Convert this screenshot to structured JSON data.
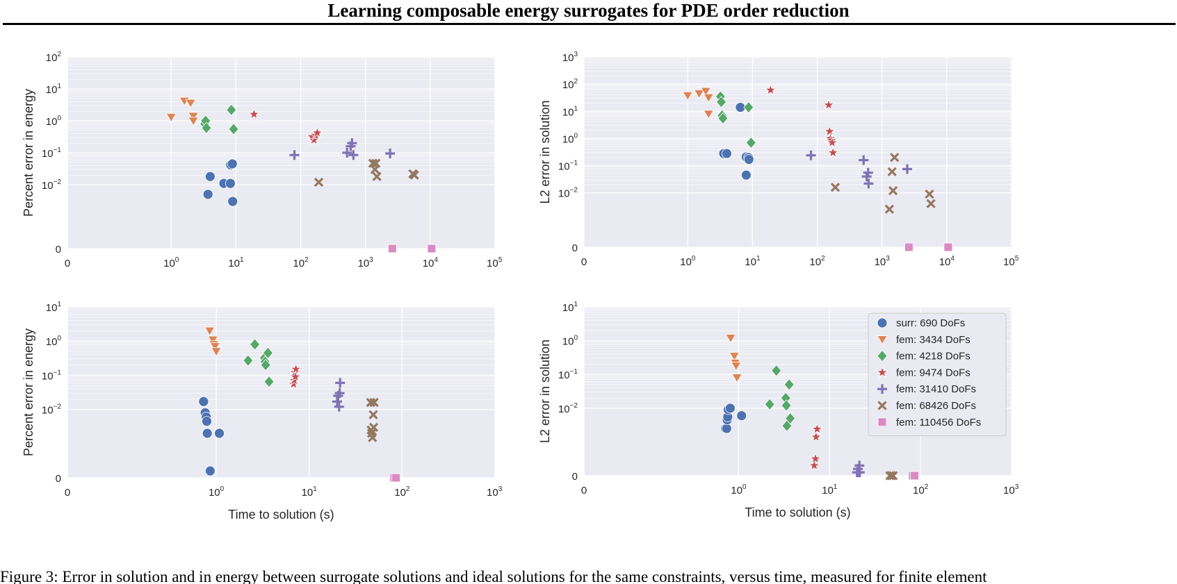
{
  "header": {
    "title": "Learning composable energy surrogates for PDE order reduction"
  },
  "caption": {
    "text": "Figure 3: Error in solution and in energy between surrogate solutions and ideal solutions for the same constraints, versus time, measured for finite element"
  },
  "colors": {
    "surr: 690 DoFs": "#4c72b0",
    "fem: 3434 DoFs": "#dd8452",
    "fem: 4218 DoFs": "#55a868",
    "fem: 9474 DoFs": "#c44e52",
    "fem: 31410 DoFs": "#8172b3",
    "fem: 68426 DoFs": "#937860",
    "fem: 110456 DoFs": "#da8bc3"
  },
  "chart_data": [
    {
      "type": "scatter",
      "xlabel": "",
      "ylabel": "Percent error in energy",
      "x_scale": "symlog",
      "y_scale": "symlog",
      "xlim": [
        0,
        100000
      ],
      "x_ticks": [
        {
          "v": 0,
          "base": "0",
          "exp": ""
        },
        {
          "v": 1,
          "base": "10",
          "exp": "0"
        },
        {
          "v": 10,
          "base": "10",
          "exp": "1"
        },
        {
          "v": 100,
          "base": "10",
          "exp": "2"
        },
        {
          "v": 1000,
          "base": "10",
          "exp": "3"
        },
        {
          "v": 10000,
          "base": "10",
          "exp": "4"
        },
        {
          "v": 100000,
          "base": "10",
          "exp": "5"
        }
      ],
      "y_ticks": [
        {
          "v": 0,
          "base": "0",
          "exp": ""
        },
        {
          "v": 0.01,
          "base": "10",
          "exp": "−2"
        },
        {
          "v": 0.1,
          "base": "10",
          "exp": "−1"
        },
        {
          "v": 1,
          "base": "10",
          "exp": "0"
        },
        {
          "v": 10,
          "base": "10",
          "exp": "1"
        },
        {
          "v": 100,
          "base": "10",
          "exp": "2"
        }
      ],
      "grid": true,
      "legend": null,
      "series": [
        {
          "name": "surr: 690 DoFs",
          "marker": "circle",
          "points": [
            [
              3.7,
              0.005
            ],
            [
              4.0,
              0.018
            ],
            [
              6.5,
              0.011
            ],
            [
              8.2,
              0.011
            ],
            [
              8.3,
              0.042
            ],
            [
              8.8,
              0.045
            ],
            [
              8.9,
              0.003
            ]
          ]
        },
        {
          "name": "fem: 3434 DoFs",
          "marker": "triangle-down",
          "points": [
            [
              1.0,
              1.3
            ],
            [
              1.6,
              4.2
            ],
            [
              2.0,
              3.6
            ],
            [
              2.2,
              1.4
            ],
            [
              2.2,
              1.0
            ]
          ]
        },
        {
          "name": "fem: 4218 DoFs",
          "marker": "diamond",
          "points": [
            [
              3.3,
              0.8
            ],
            [
              3.4,
              1.0
            ],
            [
              3.5,
              0.6
            ],
            [
              8.5,
              2.2
            ],
            [
              9.2,
              0.55
            ]
          ]
        },
        {
          "name": "fem: 9474 DoFs",
          "marker": "star",
          "points": [
            [
              19,
              1.6
            ],
            [
              150,
              0.32
            ],
            [
              160,
              0.25
            ],
            [
              170,
              0.35
            ],
            [
              180,
              0.42
            ]
          ]
        },
        {
          "name": "fem: 31410 DoFs",
          "marker": "plus",
          "points": [
            [
              80,
              0.085
            ],
            [
              520,
              0.1
            ],
            [
              590,
              0.16
            ],
            [
              620,
              0.2
            ],
            [
              650,
              0.085
            ],
            [
              2400,
              0.095
            ]
          ]
        },
        {
          "name": "fem: 68426 DoFs",
          "marker": "x",
          "points": [
            [
              190,
              0.012
            ],
            [
              1300,
              0.047
            ],
            [
              1450,
              0.047
            ],
            [
              1400,
              0.03
            ],
            [
              1500,
              0.018
            ],
            [
              5400,
              0.022
            ],
            [
              5700,
              0.02
            ]
          ]
        },
        {
          "name": "fem: 110456 DoFs",
          "marker": "square",
          "points": [
            [
              2600,
              0
            ],
            [
              10500,
              0
            ]
          ]
        }
      ]
    },
    {
      "type": "scatter",
      "xlabel": "",
      "ylabel": "L2 error in solution",
      "x_scale": "symlog",
      "y_scale": "symlog",
      "xlim": [
        0,
        100000
      ],
      "x_ticks": [
        {
          "v": 0,
          "base": "0",
          "exp": ""
        },
        {
          "v": 1,
          "base": "10",
          "exp": "0"
        },
        {
          "v": 10,
          "base": "10",
          "exp": "1"
        },
        {
          "v": 100,
          "base": "10",
          "exp": "2"
        },
        {
          "v": 1000,
          "base": "10",
          "exp": "3"
        },
        {
          "v": 10000,
          "base": "10",
          "exp": "4"
        },
        {
          "v": 100000,
          "base": "10",
          "exp": "5"
        }
      ],
      "y_ticks": [
        {
          "v": 0,
          "base": "0",
          "exp": ""
        },
        {
          "v": 0.01,
          "base": "10",
          "exp": "−2"
        },
        {
          "v": 0.1,
          "base": "10",
          "exp": "−1"
        },
        {
          "v": 1,
          "base": "10",
          "exp": "0"
        },
        {
          "v": 10,
          "base": "10",
          "exp": "1"
        },
        {
          "v": 100,
          "base": "10",
          "exp": "2"
        },
        {
          "v": 1000,
          "base": "10",
          "exp": "3"
        }
      ],
      "grid": true,
      "legend": null,
      "series": [
        {
          "name": "surr: 690 DoFs",
          "marker": "circle",
          "points": [
            [
              3.6,
              0.28
            ],
            [
              4.0,
              0.28
            ],
            [
              6.5,
              14
            ],
            [
              8.0,
              0.21
            ],
            [
              8.7,
              0.2
            ],
            [
              8.8,
              0.17
            ],
            [
              8.0,
              0.045
            ]
          ]
        },
        {
          "name": "fem: 3434 DoFs",
          "marker": "triangle-down",
          "points": [
            [
              1.0,
              38
            ],
            [
              1.5,
              45
            ],
            [
              1.9,
              55
            ],
            [
              2.1,
              32
            ],
            [
              2.1,
              8
            ]
          ]
        },
        {
          "name": "fem: 4218 DoFs",
          "marker": "diamond",
          "points": [
            [
              3.2,
              35
            ],
            [
              3.3,
              22
            ],
            [
              3.4,
              7
            ],
            [
              3.5,
              5.5
            ],
            [
              8.7,
              14
            ],
            [
              9.5,
              0.7
            ]
          ]
        },
        {
          "name": "fem: 9474 DoFs",
          "marker": "star",
          "points": [
            [
              19,
              60
            ],
            [
              150,
              17
            ],
            [
              155,
              1.8
            ],
            [
              160,
              1.0
            ],
            [
              165,
              0.85
            ],
            [
              170,
              0.7
            ],
            [
              175,
              0.3
            ]
          ]
        },
        {
          "name": "fem: 31410 DoFs",
          "marker": "plus",
          "points": [
            [
              80,
              0.24
            ],
            [
              520,
              0.16
            ],
            [
              580,
              0.04
            ],
            [
              610,
              0.055
            ],
            [
              620,
              0.022
            ],
            [
              2450,
              0.075
            ]
          ]
        },
        {
          "name": "fem: 68426 DoFs",
          "marker": "x",
          "points": [
            [
              190,
              0.016
            ],
            [
              1300,
              0.0025
            ],
            [
              1430,
              0.06
            ],
            [
              1480,
              0.012
            ],
            [
              1560,
              0.2
            ],
            [
              5400,
              0.009
            ],
            [
              5700,
              0.004
            ]
          ]
        },
        {
          "name": "fem: 110456 DoFs",
          "marker": "square",
          "points": [
            [
              2600,
              0
            ],
            [
              10500,
              0
            ]
          ]
        }
      ]
    },
    {
      "type": "scatter",
      "xlabel": "Time to solution (s)",
      "ylabel": "Percent error in energy",
      "x_scale": "symlog",
      "y_scale": "symlog",
      "xlim": [
        0,
        1000
      ],
      "x_ticks": [
        {
          "v": 0,
          "base": "0",
          "exp": ""
        },
        {
          "v": 1,
          "base": "10",
          "exp": "0"
        },
        {
          "v": 10,
          "base": "10",
          "exp": "1"
        },
        {
          "v": 100,
          "base": "10",
          "exp": "2"
        },
        {
          "v": 1000,
          "base": "10",
          "exp": "3"
        }
      ],
      "y_ticks": [
        {
          "v": 0,
          "base": "0",
          "exp": ""
        },
        {
          "v": 0.01,
          "base": "10",
          "exp": "−2"
        },
        {
          "v": 0.1,
          "base": "10",
          "exp": "−1"
        },
        {
          "v": 1,
          "base": "10",
          "exp": "0"
        },
        {
          "v": 10,
          "base": "10",
          "exp": "1"
        }
      ],
      "grid": true,
      "legend": null,
      "series": [
        {
          "name": "surr: 690 DoFs",
          "marker": "circle",
          "points": [
            [
              0.73,
              0.017
            ],
            [
              0.76,
              0.008
            ],
            [
              0.78,
              0.006
            ],
            [
              0.79,
              0.0045
            ],
            [
              0.8,
              0.002
            ],
            [
              0.86,
              0.0002
            ],
            [
              1.08,
              0.002
            ]
          ]
        },
        {
          "name": "fem: 3434 DoFs",
          "marker": "triangle-down",
          "points": [
            [
              0.85,
              2.0
            ],
            [
              0.92,
              1.1
            ],
            [
              0.94,
              0.8
            ],
            [
              0.97,
              0.7
            ],
            [
              1.0,
              0.5
            ]
          ]
        },
        {
          "name": "fem: 4218 DoFs",
          "marker": "diamond",
          "points": [
            [
              2.2,
              0.27
            ],
            [
              2.6,
              0.8
            ],
            [
              3.3,
              0.32
            ],
            [
              3.35,
              0.25
            ],
            [
              3.4,
              0.2
            ],
            [
              3.6,
              0.45
            ],
            [
              3.7,
              0.065
            ]
          ]
        },
        {
          "name": "fem: 9474 DoFs",
          "marker": "star",
          "points": [
            [
              6.8,
              0.055
            ],
            [
              6.9,
              0.07
            ],
            [
              7.0,
              0.12
            ],
            [
              7.2,
              0.15
            ],
            [
              7.1,
              0.09
            ]
          ]
        },
        {
          "name": "fem: 31410 DoFs",
          "marker": "plus",
          "points": [
            [
              20,
              0.017
            ],
            [
              20.5,
              0.025
            ],
            [
              21,
              0.012
            ],
            [
              21.3,
              0.03
            ],
            [
              21.5,
              0.06
            ]
          ]
        },
        {
          "name": "fem: 68426 DoFs",
          "marker": "x",
          "points": [
            [
              46,
              0.016
            ],
            [
              46.5,
              0.0025
            ],
            [
              47,
              0.002
            ],
            [
              48,
              0.0015
            ],
            [
              49,
              0.007
            ],
            [
              49.5,
              0.003
            ],
            [
              50,
              0.016
            ]
          ]
        },
        {
          "name": "fem: 110456 DoFs",
          "marker": "square",
          "points": [
            [
              82,
              0
            ],
            [
              86,
              0
            ]
          ]
        }
      ]
    },
    {
      "type": "scatter",
      "xlabel": "Time to solution (s)",
      "ylabel": "L2 error in solution",
      "x_scale": "symlog",
      "y_scale": "symlog",
      "xlim": [
        0,
        1000
      ],
      "x_ticks": [
        {
          "v": 0,
          "base": "0",
          "exp": ""
        },
        {
          "v": 1,
          "base": "10",
          "exp": "0"
        },
        {
          "v": 10,
          "base": "10",
          "exp": "1"
        },
        {
          "v": 100,
          "base": "10",
          "exp": "2"
        },
        {
          "v": 1000,
          "base": "10",
          "exp": "3"
        }
      ],
      "y_ticks": [
        {
          "v": 0,
          "base": "0",
          "exp": ""
        },
        {
          "v": 0.01,
          "base": "10",
          "exp": "−2"
        },
        {
          "v": 0.1,
          "base": "10",
          "exp": "−1"
        },
        {
          "v": 1,
          "base": "10",
          "exp": "0"
        },
        {
          "v": 10,
          "base": "10",
          "exp": "1"
        }
      ],
      "grid": true,
      "legend": "top-right",
      "series": [
        {
          "name": "surr: 690 DoFs",
          "marker": "circle",
          "points": [
            [
              0.72,
              0.0025
            ],
            [
              0.74,
              0.0025
            ],
            [
              0.75,
              0.0045
            ],
            [
              0.76,
              0.0055
            ],
            [
              0.77,
              0.009
            ],
            [
              0.81,
              0.01
            ],
            [
              1.08,
              0.006
            ]
          ]
        },
        {
          "name": "fem: 3434 DoFs",
          "marker": "triangle-down",
          "points": [
            [
              0.82,
              1.2
            ],
            [
              0.9,
              0.35
            ],
            [
              0.92,
              0.22
            ],
            [
              0.94,
              0.18
            ],
            [
              0.96,
              0.08
            ]
          ]
        },
        {
          "name": "fem: 4218 DoFs",
          "marker": "diamond",
          "points": [
            [
              2.2,
              0.013
            ],
            [
              2.6,
              0.13
            ],
            [
              3.3,
              0.02
            ],
            [
              3.35,
              0.012
            ],
            [
              3.4,
              0.003
            ],
            [
              3.6,
              0.05
            ],
            [
              3.7,
              0.005
            ]
          ]
        },
        {
          "name": "fem: 9474 DoFs",
          "marker": "star",
          "points": [
            [
              6.8,
              0.0003
            ],
            [
              7.0,
              0.0005
            ],
            [
              7.1,
              0.0014
            ],
            [
              7.3,
              0.0024
            ]
          ]
        },
        {
          "name": "fem: 31410 DoFs",
          "marker": "plus",
          "points": [
            [
              20,
              0.0001
            ],
            [
              20.5,
              0.0002
            ],
            [
              21,
              0.0001
            ],
            [
              21.3,
              0.0003
            ],
            [
              21.5,
              0.0001
            ]
          ]
        },
        {
          "name": "fem: 68426 DoFs",
          "marker": "x",
          "points": [
            [
              46,
              0
            ],
            [
              48,
              0
            ],
            [
              50,
              0
            ]
          ]
        },
        {
          "name": "fem: 110456 DoFs",
          "marker": "square",
          "points": [
            [
              82,
              0
            ],
            [
              86,
              0
            ]
          ]
        }
      ]
    }
  ]
}
